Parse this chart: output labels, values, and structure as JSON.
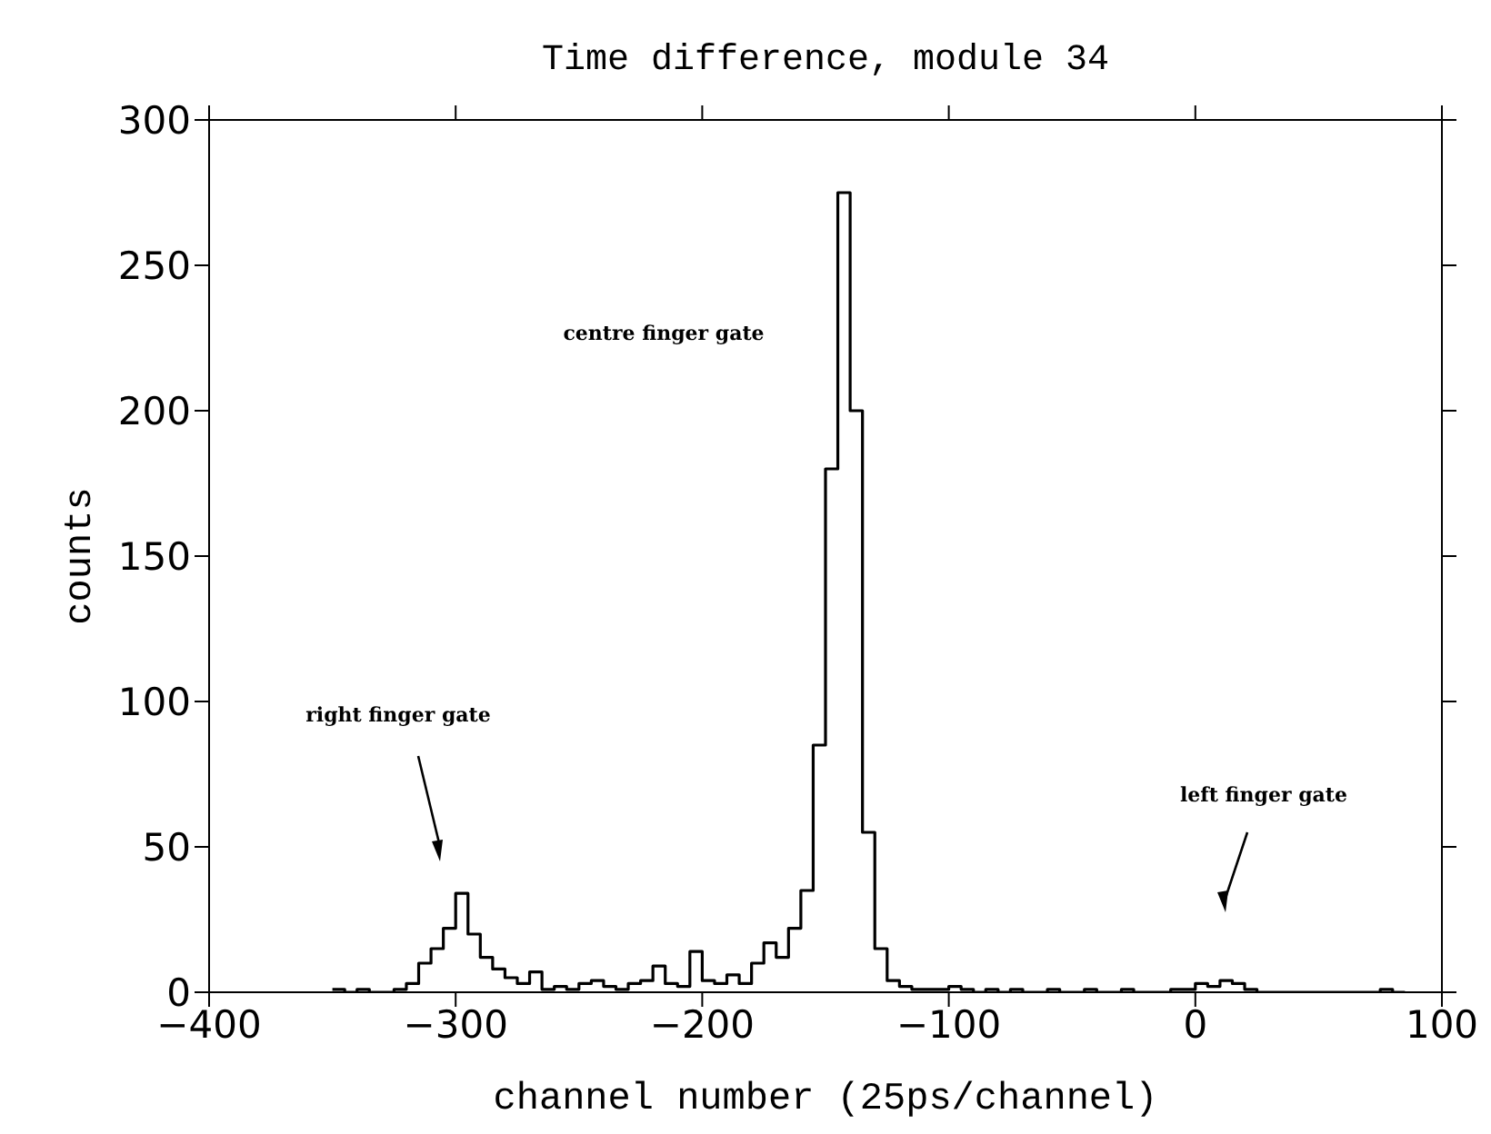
{
  "chart_data": {
    "type": "histogram",
    "title": "Time difference, module 34",
    "xlabel": "channel number (25ps/channel)",
    "ylabel": "counts",
    "bins": [
      -350,
      -345,
      -340,
      -335,
      -330,
      -325,
      -320,
      -315,
      -310,
      -305,
      -300,
      -295,
      -290,
      -285,
      -280,
      -275,
      -270,
      -265,
      -260,
      -255,
      -250,
      -245,
      -240,
      -235,
      -230,
      -225,
      -220,
      -215,
      -210,
      -205,
      -200,
      -195,
      -190,
      -185,
      -180,
      -175,
      -170,
      -165,
      -160,
      -155,
      -150,
      -145,
      -140,
      -135,
      -130,
      -125,
      -120,
      -115,
      -110,
      -105,
      -100,
      -95,
      -90,
      -85,
      -80,
      -75,
      -70,
      -65,
      -60,
      -55,
      -50,
      -45,
      -40,
      -35,
      -30,
      -25,
      -20,
      -15,
      -10,
      -5,
      0,
      5,
      10,
      15,
      20,
      25,
      30,
      35,
      40,
      45,
      50,
      55,
      60,
      65,
      70,
      75,
      80,
      85
    ],
    "values": [
      1,
      0,
      1,
      0,
      0,
      1,
      3,
      10,
      15,
      22,
      34,
      20,
      12,
      8,
      5,
      3,
      7,
      1,
      2,
      1,
      3,
      4,
      2,
      1,
      3,
      4,
      9,
      3,
      2,
      14,
      4,
      3,
      6,
      3,
      10,
      17,
      12,
      22,
      35,
      85,
      180,
      275,
      200,
      55,
      15,
      4,
      2,
      1,
      1,
      1,
      2,
      1,
      0,
      1,
      0,
      1,
      0,
      0,
      1,
      0,
      0,
      1,
      0,
      0,
      1,
      0,
      0,
      0,
      1,
      1,
      3,
      2,
      4,
      3,
      1,
      0,
      0,
      0,
      0,
      0,
      0,
      0,
      0,
      0,
      0,
      1,
      0
    ],
    "color": "#000000",
    "xlim": [
      -400,
      100
    ],
    "xticks": [
      -400,
      -300,
      -200,
      -100,
      0,
      100
    ],
    "ylim": [
      0,
      300
    ],
    "yticks": [
      0,
      50,
      100,
      150,
      200,
      250,
      300
    ],
    "grid": false,
    "annotations": [
      "centre finger gate",
      "right finger gate",
      "left finger gate"
    ]
  }
}
